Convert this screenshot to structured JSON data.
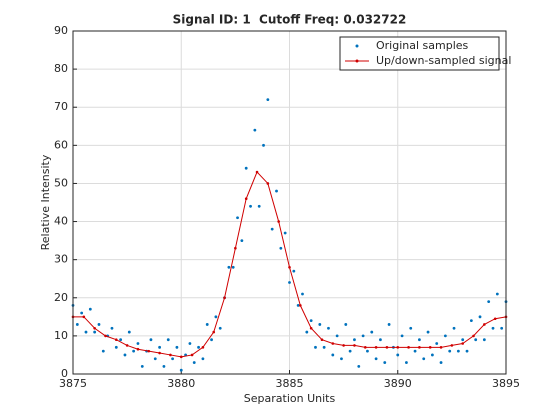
{
  "chart_data": {
    "type": "line",
    "title": "Signal ID: 1  Cutoff Freq: 0.032722",
    "xlabel": "Separation Units",
    "ylabel": "Relative Intensity",
    "xlim": [
      3875,
      3895
    ],
    "ylim": [
      0,
      90
    ],
    "xticks": [
      3875,
      3880,
      3885,
      3890,
      3895
    ],
    "yticks": [
      0,
      10,
      20,
      30,
      40,
      50,
      60,
      70,
      80,
      90
    ],
    "grid": true,
    "legend": "upper right",
    "series": [
      {
        "name": "Original samples",
        "type": "scatter",
        "color": "#0072bd",
        "x": [
          3875.0,
          3875.2,
          3875.4,
          3875.6,
          3875.8,
          3876.0,
          3876.2,
          3876.4,
          3876.6,
          3876.8,
          3877.0,
          3877.2,
          3877.4,
          3877.6,
          3877.8,
          3878.0,
          3878.2,
          3878.4,
          3878.6,
          3878.8,
          3879.0,
          3879.2,
          3879.4,
          3879.6,
          3879.8,
          3880.0,
          3880.2,
          3880.4,
          3880.6,
          3880.8,
          3881.0,
          3881.2,
          3881.4,
          3881.6,
          3881.8,
          3882.0,
          3882.2,
          3882.4,
          3882.6,
          3882.8,
          3883.0,
          3883.2,
          3883.4,
          3883.6,
          3883.8,
          3884.0,
          3884.2,
          3884.4,
          3884.6,
          3884.8,
          3885.0,
          3885.2,
          3885.4,
          3885.6,
          3885.8,
          3886.0,
          3886.2,
          3886.4,
          3886.6,
          3886.8,
          3887.0,
          3887.2,
          3887.4,
          3887.6,
          3887.8,
          3888.0,
          3888.2,
          3888.4,
          3888.6,
          3888.8,
          3889.0,
          3889.2,
          3889.4,
          3889.6,
          3889.8,
          3890.0,
          3890.2,
          3890.4,
          3890.6,
          3890.8,
          3891.0,
          3891.2,
          3891.4,
          3891.6,
          3891.8,
          3892.0,
          3892.2,
          3892.4,
          3892.6,
          3892.8,
          3893.0,
          3893.2,
          3893.4,
          3893.6,
          3893.8,
          3894.0,
          3894.2,
          3894.4,
          3894.6,
          3894.8,
          3895.0
        ],
        "values": [
          18,
          13,
          16,
          11,
          17,
          11,
          13,
          6,
          10,
          12,
          7,
          9,
          5,
          11,
          6,
          8,
          2,
          6,
          9,
          4,
          7,
          2,
          9,
          4,
          7,
          1,
          5,
          8,
          3,
          7,
          4,
          13,
          9,
          15,
          12,
          20,
          28,
          28,
          41,
          35,
          54,
          44,
          64,
          44,
          60,
          72,
          38,
          48,
          33,
          37,
          24,
          27,
          18,
          21,
          11,
          14,
          7,
          13,
          7,
          12,
          5,
          10,
          4,
          13,
          6,
          9,
          2,
          10,
          6,
          11,
          4,
          9,
          3,
          13,
          7,
          5,
          10,
          3,
          12,
          6,
          9,
          4,
          11,
          5,
          8,
          3,
          10,
          6,
          12,
          6,
          9,
          6,
          14,
          9,
          15,
          9,
          19,
          12,
          21,
          12,
          19
        ]
      },
      {
        "name": "Up/down-sampled signal",
        "type": "line",
        "color": "#d00000",
        "x": [
          3875,
          3875.5,
          3876,
          3876.5,
          3877,
          3877.5,
          3878,
          3878.5,
          3879,
          3879.5,
          3880,
          3880.5,
          3881,
          3881.5,
          3882,
          3882.5,
          3883,
          3883.5,
          3884,
          3884.5,
          3885,
          3885.5,
          3886,
          3886.5,
          3887,
          3887.5,
          3888,
          3888.5,
          3889,
          3889.5,
          3890,
          3890.5,
          3891,
          3891.5,
          3892,
          3892.5,
          3893,
          3893.5,
          3894,
          3894.5,
          3895
        ],
        "values": [
          15,
          15,
          12,
          10,
          9,
          7.5,
          6.5,
          6,
          5.5,
          5,
          4.5,
          5,
          7,
          11,
          20,
          33,
          46,
          53,
          50,
          40,
          28,
          18,
          12,
          9,
          8,
          7.5,
          7.5,
          7,
          7,
          7,
          7,
          7,
          7,
          7,
          7,
          7.5,
          8,
          10,
          13,
          14.5,
          15
        ]
      }
    ]
  }
}
